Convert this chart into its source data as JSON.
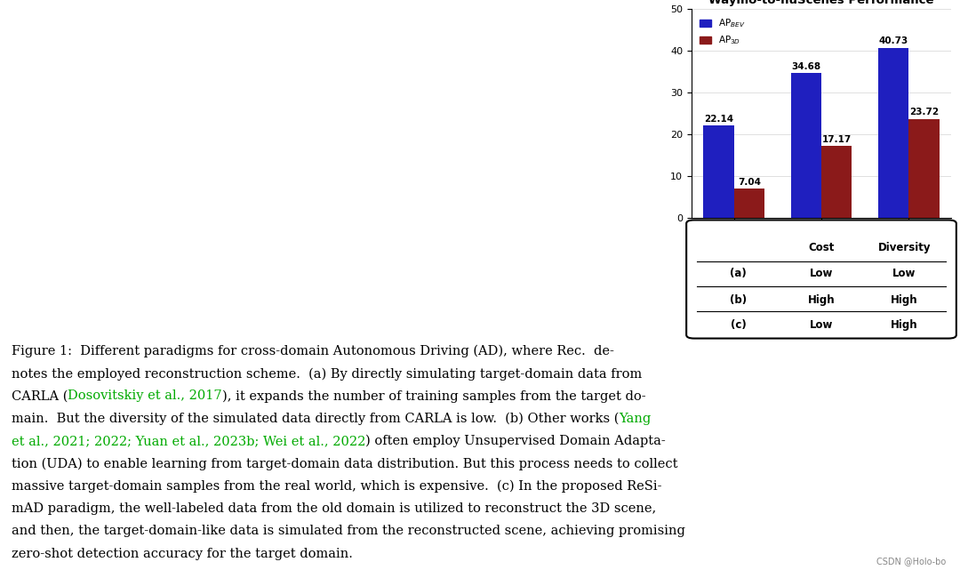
{
  "title": "Waymo-to-nuScenes Performance",
  "categories": [
    "(a)",
    "(b)",
    "(c)"
  ],
  "ap_bev": [
    22.14,
    34.68,
    40.73
  ],
  "ap_3d": [
    7.04,
    17.17,
    23.72
  ],
  "bar_color_bev": "#1f1fbf",
  "bar_color_3d": "#8b1a1a",
  "ylim": [
    0,
    50
  ],
  "yticks": [
    0,
    10,
    20,
    30,
    40,
    50
  ],
  "legend_bev": "AP$_{BEV}$",
  "legend_3d": "AP$_{3D}$",
  "table_rows": [
    "(a)",
    "(b)",
    "(c)"
  ],
  "table_cols": [
    "",
    "Cost",
    "Diversity"
  ],
  "table_data": [
    [
      "Low",
      "Low"
    ],
    [
      "High",
      "High"
    ],
    [
      "Low",
      "High"
    ]
  ],
  "bg_color": "#ffffff",
  "link_color": "#00aa00"
}
